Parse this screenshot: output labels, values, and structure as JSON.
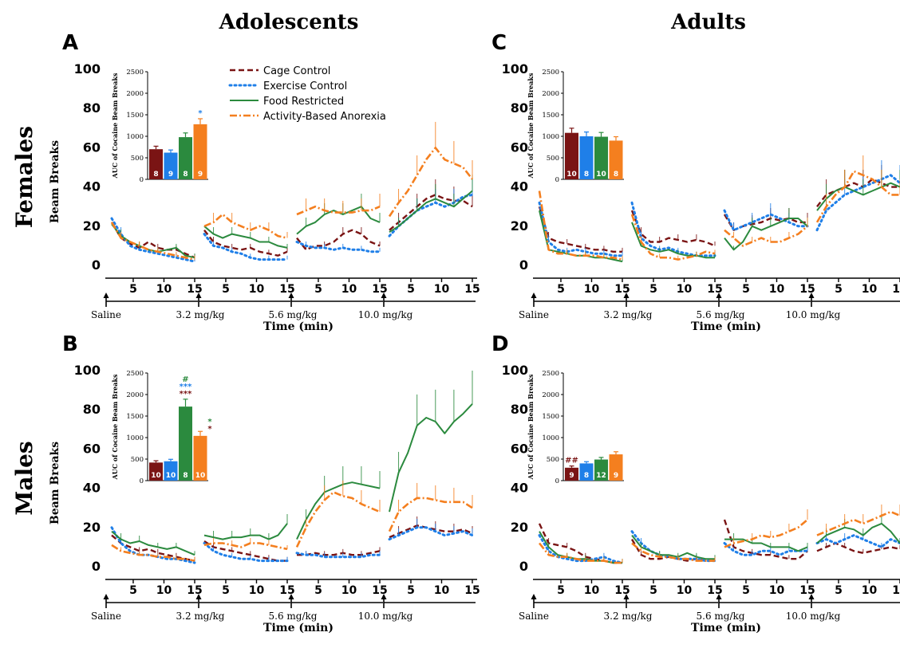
{
  "figure": {
    "column_titles": [
      "Adolescents",
      "Adults"
    ],
    "row_titles": [
      "Females",
      "Males"
    ]
  },
  "colors": {
    "Cage Control": "#7a1414",
    "Exercise Control": "#1f7fe8",
    "Food Restricted": "#2b8a3e",
    "Activity-Based Anorexia": "#f47f1f"
  },
  "legend": {
    "placement": "top-center of panel A",
    "entries": [
      "Cage Control",
      "Exercise Control",
      "Food Restricted",
      "Activity-Based Anorexia"
    ]
  },
  "chart_data": [
    {
      "panel": "A",
      "type": "line",
      "ylabel": "Beam Breaks",
      "xlabel": "Time (min)",
      "ylim": [
        0,
        100
      ],
      "y_ticks": [
        "0",
        "20",
        "40",
        "60",
        "80",
        "100"
      ],
      "x_ticks": [
        "5",
        "10",
        "15"
      ],
      "segments": [
        "Saline",
        "3.2 mg/kg",
        "5.6 mg/kg",
        "10.0 mg/kg"
      ],
      "series": [
        {
          "name": "Cage Control",
          "values": [
            [
              22,
              14,
              11,
              9,
              12,
              9,
              8,
              8,
              6,
              4
            ],
            [
              18,
              12,
              10,
              9,
              8,
              9,
              7,
              6,
              5,
              7
            ],
            [
              14,
              8,
              10,
              10,
              12,
              16,
              18,
              16,
              12,
              10
            ],
            [
              18,
              22,
              26,
              30,
              34,
              36,
              34,
              33,
              33,
              30
            ]
          ]
        },
        {
          "name": "Exercise Control",
          "values": [
            [
              24,
              16,
              10,
              8,
              7,
              6,
              5,
              4,
              3,
              2
            ],
            [
              16,
              10,
              9,
              7,
              6,
              4,
              3,
              3,
              3,
              3
            ],
            [
              12,
              10,
              9,
              9,
              8,
              9,
              8,
              8,
              7,
              7
            ],
            [
              15,
              20,
              24,
              28,
              30,
              32,
              30,
              32,
              35,
              36
            ]
          ]
        },
        {
          "name": "Food Restricted",
          "values": [
            [
              21,
              15,
              12,
              10,
              8,
              7,
              8,
              9,
              5,
              4
            ],
            [
              20,
              16,
              14,
              16,
              15,
              14,
              12,
              12,
              10,
              9
            ],
            [
              16,
              20,
              22,
              26,
              28,
              26,
              28,
              30,
              24,
              22
            ],
            [
              17,
              20,
              24,
              28,
              32,
              34,
              32,
              30,
              34,
              38
            ]
          ]
        },
        {
          "name": "Activity-Based Anorexia",
          "values": [
            [
              22,
              14,
              12,
              10,
              8,
              7,
              6,
              5,
              4,
              3
            ],
            [
              20,
              22,
              26,
              22,
              20,
              18,
              20,
              18,
              15,
              14
            ],
            [
              26,
              28,
              30,
              28,
              27,
              27,
              27,
              28,
              28,
              30
            ],
            [
              25,
              32,
              38,
              46,
              54,
              60,
              54,
              52,
              50,
              44
            ]
          ]
        }
      ],
      "inset": {
        "ylabel": "AUC of Cocaine Beam Breaks",
        "ylim": [
          0,
          2500
        ],
        "y_ticks": [
          "0",
          "500",
          "1000",
          "1500",
          "2000",
          "2500"
        ],
        "values": [
          700,
          620,
          980,
          1280
        ],
        "n": [
          "8",
          "9",
          "8",
          "9"
        ],
        "annotations": [
          {
            "bar": 3,
            "text": "*",
            "color": "Exercise Control"
          }
        ]
      }
    },
    {
      "panel": "B",
      "type": "line",
      "ylabel": "Beam Breaks",
      "xlabel": "Time (min)",
      "ylim": [
        0,
        100
      ],
      "y_ticks": [
        "0",
        "20",
        "40",
        "60",
        "80",
        "100"
      ],
      "x_ticks": [
        "5",
        "10",
        "15"
      ],
      "segments": [
        "Saline",
        "3.2 mg/kg",
        "5.6 mg/kg",
        "10.0 mg/kg"
      ],
      "series": [
        {
          "name": "Cage Control",
          "values": [
            [
              16,
              12,
              10,
              8,
              9,
              7,
              6,
              5,
              4,
              3
            ],
            [
              13,
              10,
              9,
              8,
              7,
              6,
              5,
              4,
              3,
              3
            ],
            [
              6,
              6,
              7,
              6,
              6,
              7,
              6,
              6,
              7,
              8
            ],
            [
              15,
              17,
              19,
              21,
              20,
              19,
              18,
              18,
              19,
              17
            ]
          ]
        },
        {
          "name": "Exercise Control",
          "values": [
            [
              20,
              12,
              8,
              6,
              6,
              5,
              4,
              4,
              3,
              2
            ],
            [
              12,
              8,
              6,
              5,
              4,
              4,
              3,
              3,
              3,
              3
            ],
            [
              7,
              6,
              6,
              5,
              5,
              5,
              5,
              5,
              6,
              6
            ],
            [
              14,
              16,
              18,
              20,
              20,
              18,
              16,
              17,
              18,
              16
            ]
          ]
        },
        {
          "name": "Food Restricted",
          "values": [
            [
              18,
              14,
              12,
              13,
              11,
              10,
              9,
              10,
              8,
              6
            ],
            [
              16,
              15,
              14,
              15,
              15,
              16,
              16,
              14,
              16,
              22
            ],
            [
              14,
              24,
              32,
              38,
              40,
              42,
              43,
              42,
              41,
              40
            ],
            [
              28,
              48,
              58,
              72,
              76,
              74,
              68,
              74,
              78,
              83
            ]
          ]
        },
        {
          "name": "Activity-Based Anorexia",
          "values": [
            [
              11,
              8,
              7,
              6,
              6,
              5,
              5,
              4,
              4,
              3
            ],
            [
              11,
              12,
              12,
              11,
              10,
              12,
              12,
              11,
              10,
              9
            ],
            [
              10,
              20,
              28,
              34,
              38,
              36,
              35,
              32,
              30,
              28
            ],
            [
              18,
              28,
              32,
              35,
              35,
              34,
              33,
              33,
              33,
              30
            ]
          ]
        }
      ],
      "inset": {
        "ylabel": "AUC of Cocaine Beam Breaks",
        "ylim": [
          0,
          2500
        ],
        "y_ticks": [
          "0",
          "500",
          "1000",
          "1500",
          "2000",
          "2500"
        ],
        "values": [
          420,
          450,
          1720,
          1040
        ],
        "n": [
          "10",
          "10",
          "8",
          "10"
        ],
        "annotations": [
          {
            "bar": 2,
            "text": "#",
            "color": "Food Restricted"
          },
          {
            "bar": 2,
            "text": "***",
            "color": "Exercise Control"
          },
          {
            "bar": 2,
            "text": "***",
            "color": "Cage Control"
          },
          {
            "bar": 3,
            "text": "*",
            "color": "Food Restricted"
          },
          {
            "bar": 3,
            "text": "*",
            "color": "Cage Control"
          }
        ]
      }
    },
    {
      "panel": "C",
      "type": "line",
      "ylabel": "Beam Breaks",
      "xlabel": "Time (min)",
      "ylim": [
        0,
        100
      ],
      "y_ticks": [
        "0",
        "20",
        "40",
        "60",
        "80",
        "100"
      ],
      "x_ticks": [
        "5",
        "10",
        "15"
      ],
      "segments": [
        "Saline",
        "3.2 mg/kg",
        "5.6 mg/kg",
        "10.0 mg/kg"
      ],
      "series": [
        {
          "name": "Cage Control",
          "values": [
            [
              30,
              14,
              12,
              11,
              10,
              9,
              8,
              8,
              7,
              7
            ],
            [
              28,
              16,
              12,
              12,
              14,
              13,
              12,
              13,
              12,
              10
            ],
            [
              26,
              18,
              20,
              21,
              22,
              24,
              23,
              24,
              22,
              22
            ],
            [
              30,
              36,
              38,
              40,
              42,
              40,
              44,
              42,
              40,
              40
            ]
          ]
        },
        {
          "name": "Exercise Control",
          "values": [
            [
              32,
              12,
              8,
              7,
              8,
              7,
              6,
              6,
              5,
              5
            ],
            [
              32,
              14,
              10,
              8,
              9,
              7,
              6,
              5,
              5,
              5
            ],
            [
              28,
              18,
              20,
              22,
              24,
              26,
              24,
              22,
              20,
              20
            ],
            [
              18,
              28,
              32,
              36,
              38,
              40,
              42,
              44,
              46,
              42
            ]
          ]
        },
        {
          "name": "Food Restricted",
          "values": [
            [
              28,
              8,
              7,
              6,
              5,
              5,
              4,
              4,
              3,
              2
            ],
            [
              22,
              10,
              8,
              7,
              8,
              6,
              5,
              5,
              4,
              4
            ],
            [
              14,
              8,
              12,
              20,
              18,
              20,
              22,
              24,
              24,
              20
            ],
            [
              28,
              34,
              38,
              40,
              38,
              36,
              38,
              40,
              42,
              40
            ]
          ]
        },
        {
          "name": "Activity-Based Anorexia",
          "values": [
            [
              38,
              8,
              6,
              6,
              5,
              5,
              5,
              4,
              4,
              3
            ],
            [
              26,
              12,
              6,
              4,
              4,
              3,
              4,
              5,
              7,
              6
            ],
            [
              18,
              14,
              10,
              12,
              14,
              12,
              12,
              14,
              16,
              20
            ],
            [
              22,
              30,
              36,
              40,
              48,
              46,
              44,
              40,
              36,
              36
            ]
          ]
        }
      ],
      "inset": {
        "ylabel": "AUC of Cocaine Beam Breaks",
        "ylim": [
          0,
          2500
        ],
        "y_ticks": [
          "0",
          "500",
          "1000",
          "1500",
          "2000",
          "2500"
        ],
        "values": [
          1080,
          1000,
          990,
          900
        ],
        "n": [
          "10",
          "8",
          "10",
          "8"
        ],
        "annotations": []
      }
    },
    {
      "panel": "D",
      "type": "line",
      "ylabel": "Beam Breaks",
      "xlabel": "Time (min)",
      "ylim": [
        0,
        100
      ],
      "y_ticks": [
        "0",
        "20",
        "40",
        "60",
        "80",
        "100"
      ],
      "x_ticks": [
        "5",
        "10",
        "15"
      ],
      "segments": [
        "Saline",
        "3.2 mg/kg",
        "5.6 mg/kg",
        "10.0 mg/kg"
      ],
      "series": [
        {
          "name": "Cage Control",
          "values": [
            [
              22,
              12,
              11,
              10,
              8,
              5,
              4,
              3,
              2,
              2
            ],
            [
              14,
              6,
              4,
              4,
              5,
              4,
              3,
              4,
              3,
              3
            ],
            [
              24,
              10,
              8,
              7,
              6,
              6,
              5,
              4,
              4,
              8
            ],
            [
              8,
              10,
              12,
              10,
              8,
              7,
              8,
              9,
              10,
              9
            ]
          ]
        },
        {
          "name": "Exercise Control",
          "values": [
            [
              16,
              8,
              5,
              4,
              3,
              3,
              4,
              5,
              3,
              2
            ],
            [
              18,
              12,
              8,
              6,
              5,
              4,
              4,
              4,
              3,
              3
            ],
            [
              12,
              8,
              6,
              6,
              8,
              8,
              6,
              8,
              8,
              8
            ],
            [
              12,
              14,
              12,
              14,
              16,
              14,
              12,
              10,
              14,
              12
            ]
          ]
        },
        {
          "name": "Food Restricted",
          "values": [
            [
              18,
              10,
              6,
              5,
              4,
              4,
              3,
              3,
              2,
              2
            ],
            [
              16,
              10,
              8,
              6,
              6,
              5,
              7,
              5,
              4,
              4
            ],
            [
              14,
              14,
              14,
              12,
              12,
              10,
              10,
              10,
              8,
              10
            ],
            [
              12,
              16,
              18,
              20,
              19,
              16,
              20,
              22,
              18,
              12
            ]
          ]
        },
        {
          "name": "Activity-Based Anorexia",
          "values": [
            [
              12,
              6,
              5,
              5,
              4,
              3,
              3,
              3,
              2,
              2
            ],
            [
              12,
              8,
              6,
              5,
              5,
              4,
              4,
              3,
              3,
              3
            ],
            [
              10,
              12,
              13,
              14,
              16,
              15,
              16,
              18,
              20,
              24
            ],
            [
              16,
              18,
              20,
              22,
              24,
              22,
              24,
              26,
              28,
              26
            ]
          ]
        }
      ],
      "inset": {
        "ylabel": "AUC of Cocaine Beam Breaks",
        "ylim": [
          0,
          2500
        ],
        "y_ticks": [
          "0",
          "500",
          "1000",
          "1500",
          "2000",
          "2500"
        ],
        "values": [
          300,
          400,
          490,
          610
        ],
        "n": [
          "9",
          "8",
          "12",
          "9"
        ],
        "annotations": [
          {
            "bar": 0,
            "text": "##",
            "color": "Cage Control"
          }
        ]
      }
    }
  ]
}
